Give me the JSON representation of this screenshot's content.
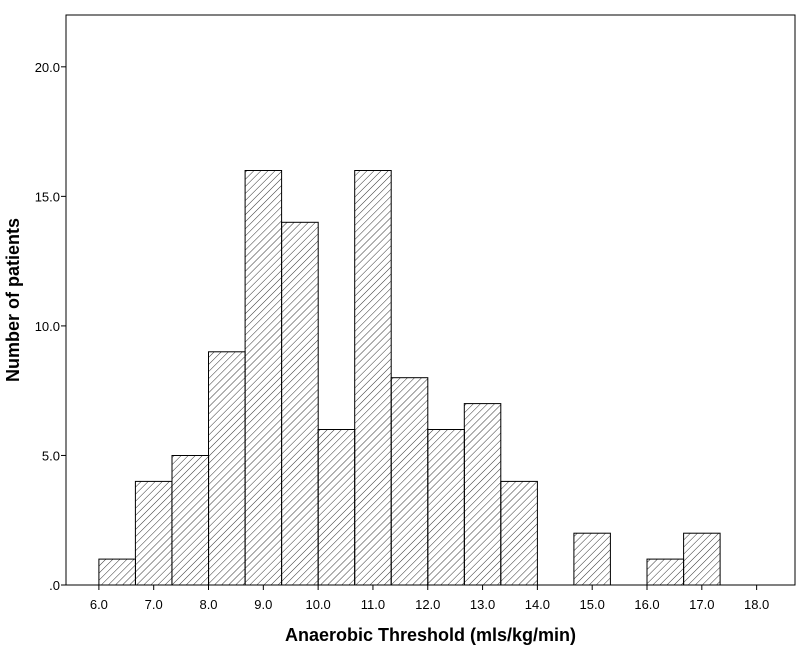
{
  "chart_data": {
    "type": "bar",
    "title": "",
    "xlabel": "Anaerobic Threshold (mls/kg/min)",
    "ylabel": "Number of patients",
    "bin_edges": [
      6.0,
      6.667,
      7.333,
      8.0,
      8.667,
      9.333,
      10.0,
      10.667,
      11.333,
      12.0,
      12.667,
      13.333,
      14.0,
      14.667,
      15.333,
      16.0,
      16.667,
      17.333,
      18.0
    ],
    "values": [
      1,
      4,
      5,
      9,
      16,
      14,
      6,
      16,
      8,
      6,
      7,
      4,
      0,
      2,
      0,
      1,
      2,
      0
    ],
    "xlim": [
      5.4,
      18.7
    ],
    "ylim": [
      0,
      22
    ],
    "x_ticks": [
      6,
      7,
      8,
      9,
      10,
      11,
      12,
      13,
      14,
      15,
      16,
      17,
      18
    ],
    "x_tick_labels": [
      "6.0",
      "7.0",
      "8.0",
      "9.0",
      "10.0",
      "11.0",
      "12.0",
      "13.0",
      "14.0",
      "15.0",
      "16.0",
      "17.0",
      "18.0"
    ],
    "y_ticks": [
      0,
      5,
      10,
      15,
      20
    ],
    "y_tick_labels": [
      ".0",
      "5.0",
      "10.0",
      "15.0",
      "20.0"
    ],
    "bar_fill": "hatched",
    "grid": false,
    "legend": "none",
    "colors": {
      "bar_stroke": "#000000",
      "hatch": "#000000",
      "background": "#ffffff"
    }
  }
}
